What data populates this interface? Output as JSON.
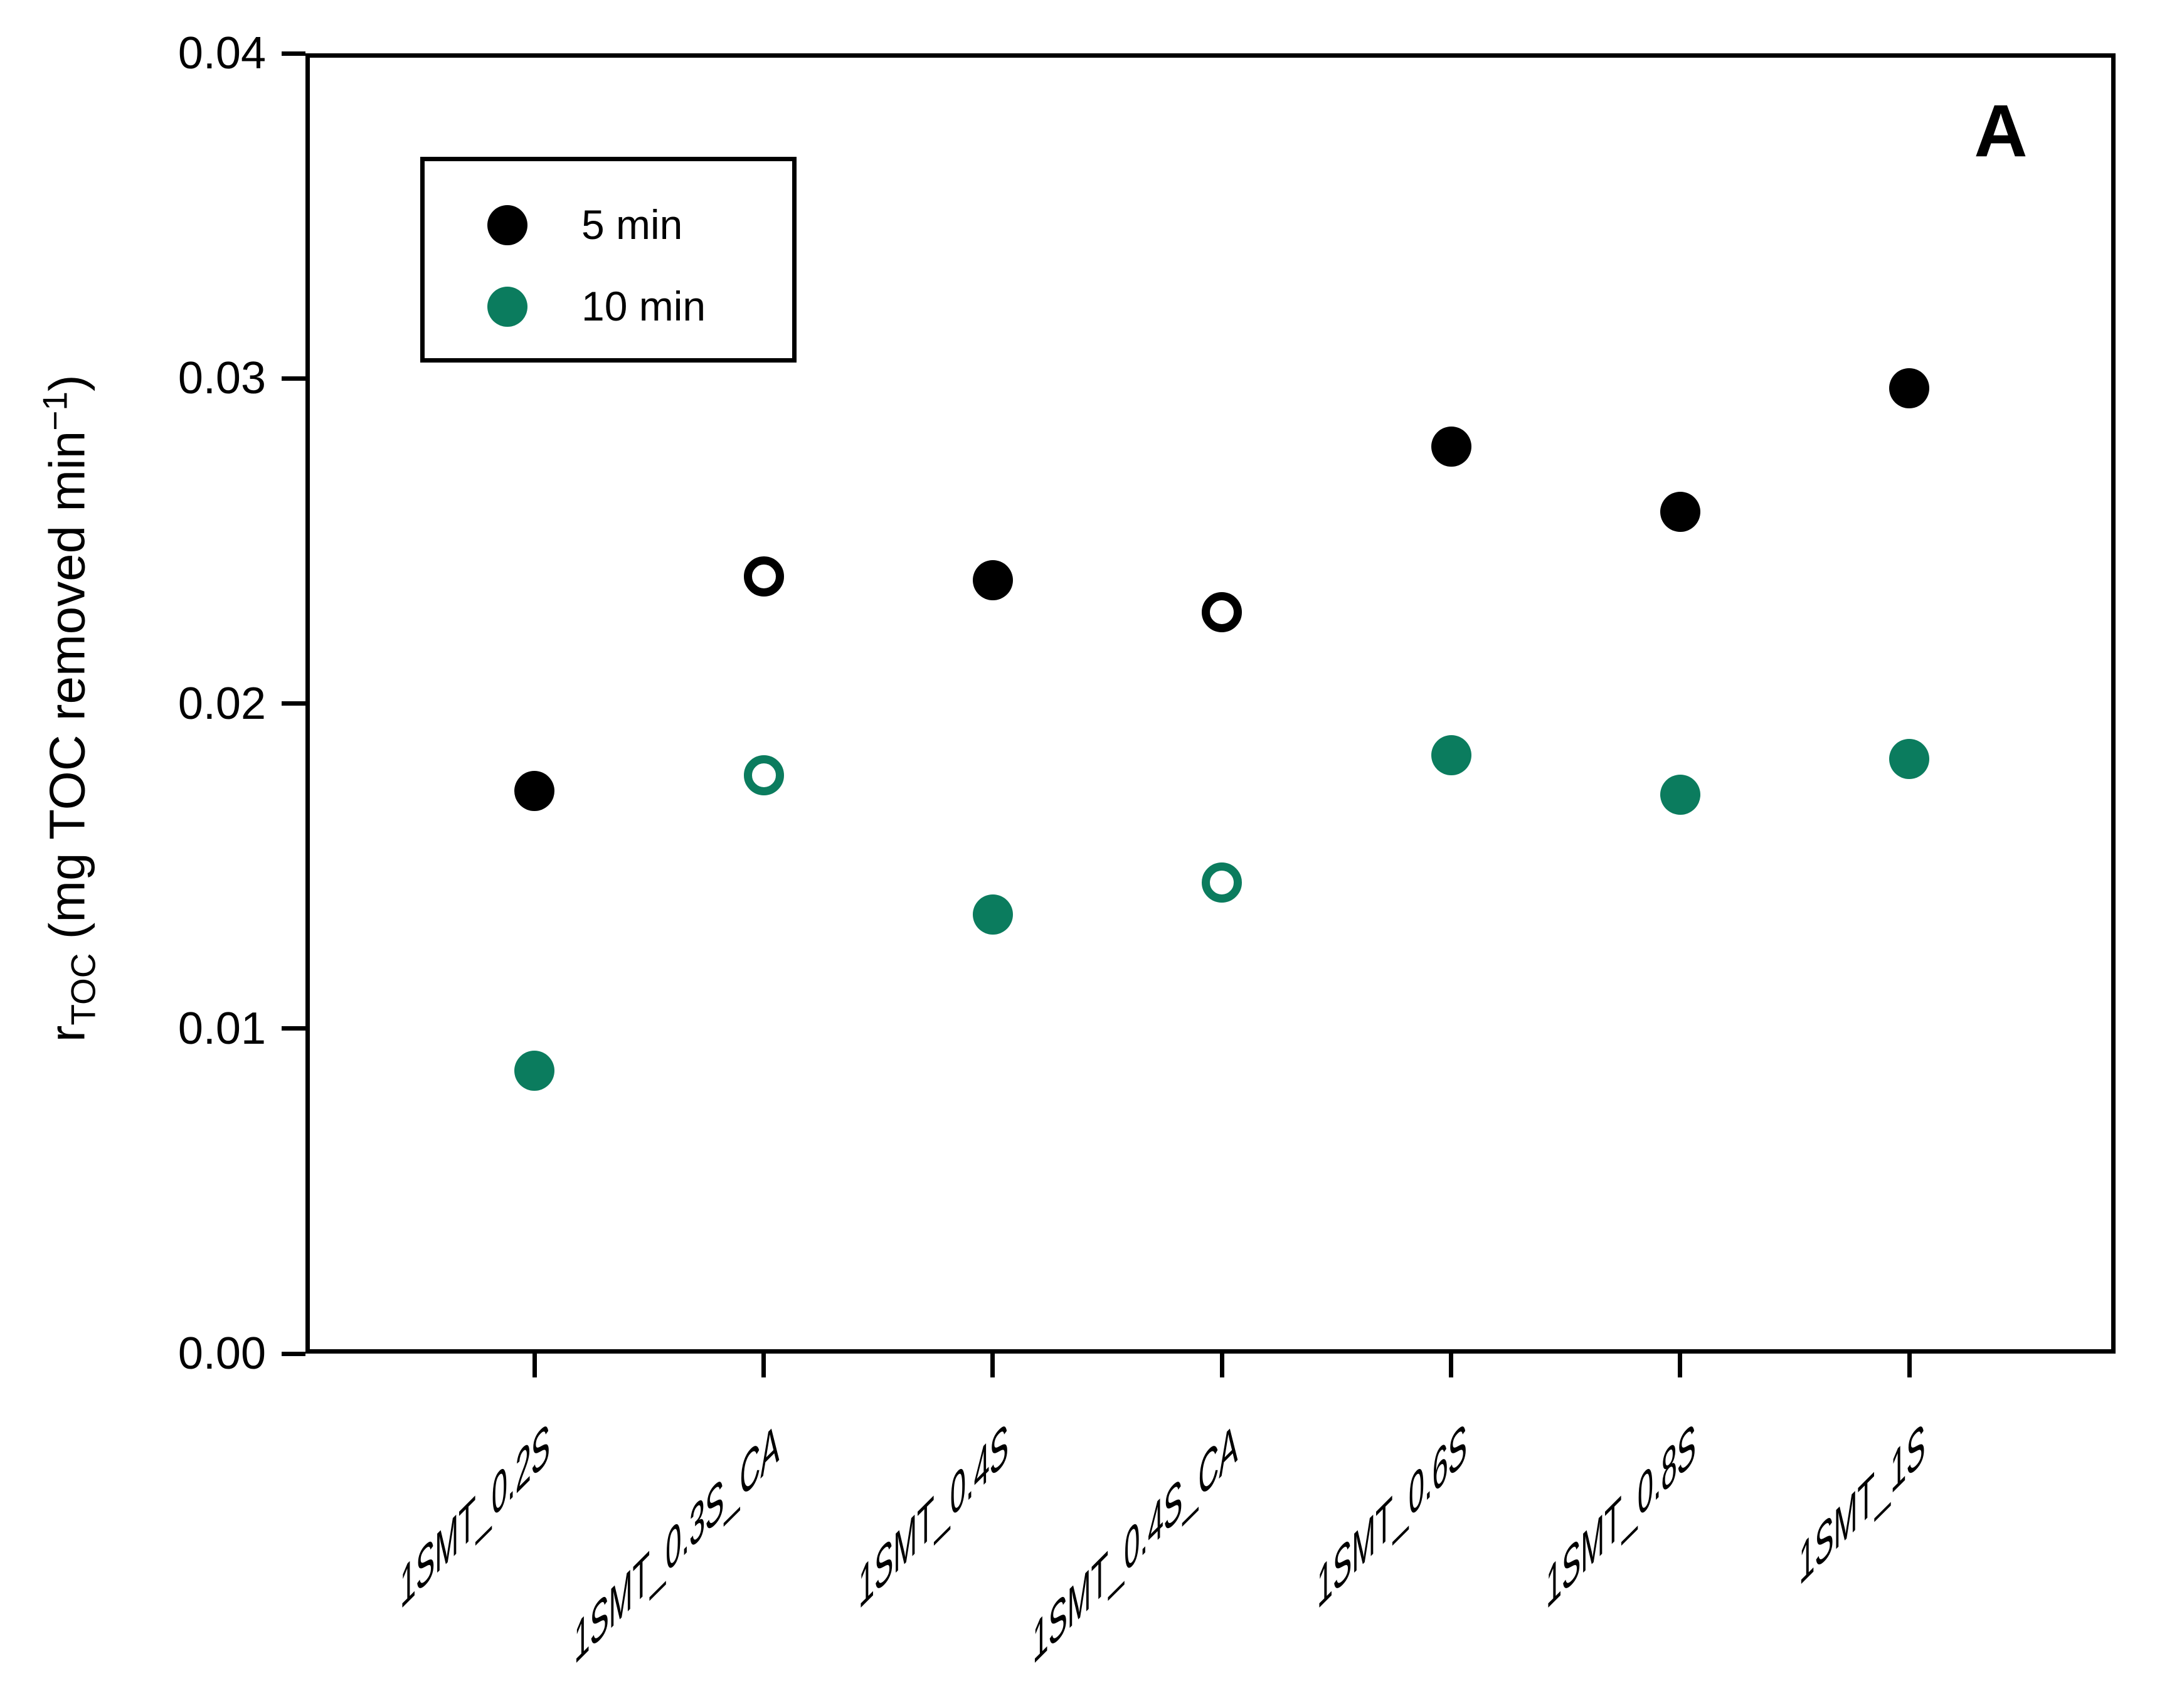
{
  "panel_label": "A",
  "y_axis": {
    "title_prefix": "r",
    "title_sub": "TOC",
    "title_mid": " (mg TOC removed min",
    "title_sup": "−1",
    "title_suffix": ")",
    "tick_labels": [
      "0.00",
      "0.01",
      "0.02",
      "0.03",
      "0.04"
    ]
  },
  "legend": {
    "items": [
      {
        "label": "5 min",
        "color": "#000000",
        "marker": "filled-circle"
      },
      {
        "label": "10 min",
        "color": "#0B7C5E",
        "marker": "filled-circle"
      }
    ]
  },
  "chart_data": {
    "type": "scatter",
    "title": "",
    "xlabel": "",
    "ylabel": "rTOC (mg TOC removed min-1)",
    "categories": [
      "1SMT_0.2S",
      "1SMT_0.3S_CA",
      "1SMT_0.4S",
      "1SMT_0.4S_CA",
      "1SMT_0.6S",
      "1SMT_0.8S",
      "1SMT_1S"
    ],
    "ylim": [
      0,
      0.04
    ],
    "ytick_step": 0.01,
    "grid": false,
    "legend_position": "upper-left",
    "series": [
      {
        "name": "5 min",
        "color": "#000000",
        "values": [
          0.0173,
          0.0239,
          0.0238,
          0.0228,
          0.0279,
          0.0259,
          0.0297
        ],
        "open_markers": [
          false,
          true,
          false,
          true,
          false,
          false,
          false
        ]
      },
      {
        "name": "10 min",
        "color": "#0B7C5E",
        "values": [
          0.0087,
          0.0178,
          0.0135,
          0.0145,
          0.0184,
          0.0172,
          0.0183
        ],
        "open_markers": [
          false,
          true,
          false,
          true,
          false,
          false,
          false
        ]
      }
    ]
  }
}
